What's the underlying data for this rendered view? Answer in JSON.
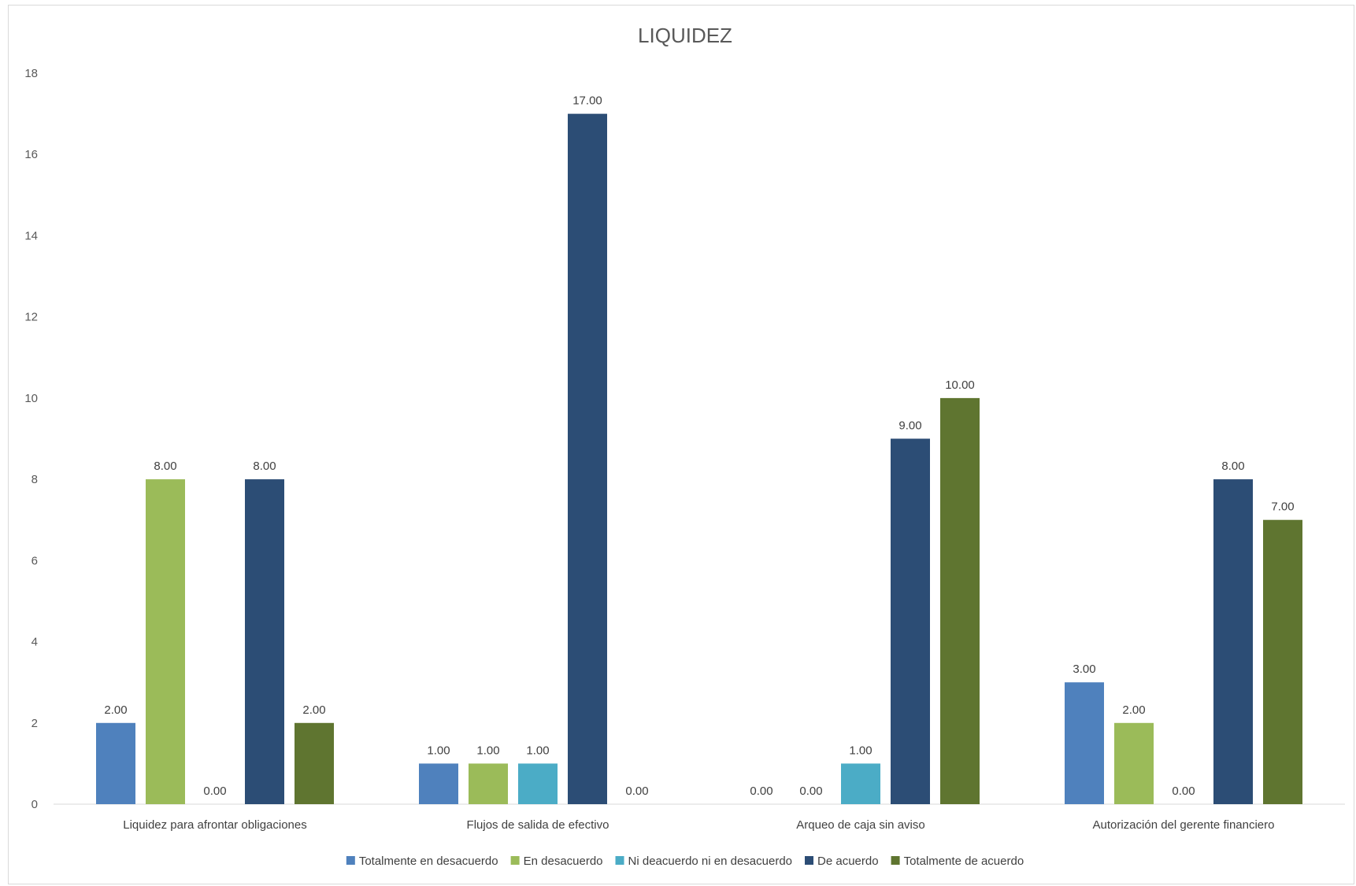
{
  "chart_data": {
    "type": "bar",
    "title": "LIQUIDEZ",
    "xlabel": "",
    "ylabel": "",
    "ylim": [
      0,
      18
    ],
    "yticks": [
      0,
      2,
      4,
      6,
      8,
      10,
      12,
      14,
      16,
      18
    ],
    "grid": false,
    "legend_position": "bottom",
    "categories": [
      "Liquidez para afrontar obligaciones",
      "Flujos de salida de efectivo",
      "Arqueo de caja sin aviso",
      "Autorización del gerente financiero"
    ],
    "series": [
      {
        "name": "Totalmente en desacuerdo",
        "color": "#4f81bd",
        "values": [
          2,
          1,
          0,
          3
        ],
        "labels": [
          "2.00",
          "1.00",
          "0.00",
          "3.00"
        ]
      },
      {
        "name": "En desacuerdo",
        "color": "#9bbb59",
        "values": [
          8,
          1,
          0,
          2
        ],
        "labels": [
          "8.00",
          "1.00",
          "0.00",
          "2.00"
        ]
      },
      {
        "name": "Ni deacuerdo ni en desacuerdo",
        "color": "#4bacc6",
        "values": [
          0,
          1,
          1,
          0
        ],
        "labels": [
          "0.00",
          "1.00",
          "1.00",
          "0.00"
        ]
      },
      {
        "name": "De acuerdo",
        "color": "#2c4d75",
        "values": [
          8,
          17,
          9,
          8
        ],
        "labels": [
          "8.00",
          "17.00",
          "9.00",
          "8.00"
        ]
      },
      {
        "name": "Totalmente de acuerdo",
        "color": "#5f7530",
        "values": [
          2,
          0,
          10,
          7
        ],
        "labels": [
          "2.00",
          "0.00",
          "10.00",
          "7.00"
        ]
      }
    ]
  }
}
